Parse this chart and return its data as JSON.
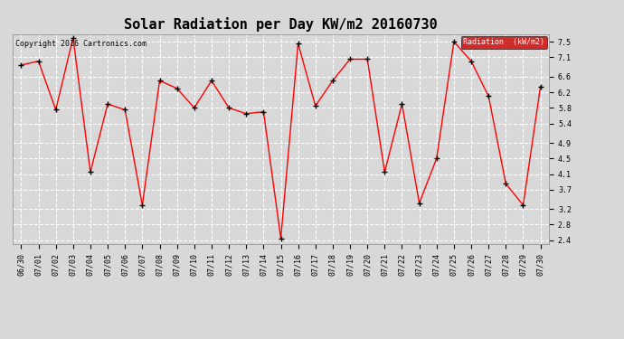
{
  "title": "Solar Radiation per Day KW/m2 20160730",
  "copyright_text": "Copyright 2016 Cartronics.com",
  "legend_label": "Radiation  (kW/m2)",
  "dates": [
    "06/30",
    "07/01",
    "07/02",
    "07/03",
    "07/04",
    "07/05",
    "07/06",
    "07/07",
    "07/08",
    "07/09",
    "07/10",
    "07/11",
    "07/12",
    "07/13",
    "07/14",
    "07/15",
    "07/16",
    "07/17",
    "07/18",
    "07/19",
    "07/20",
    "07/21",
    "07/22",
    "07/23",
    "07/24",
    "07/25",
    "07/26",
    "07/27",
    "07/28",
    "07/29",
    "07/30"
  ],
  "values": [
    6.9,
    7.0,
    5.75,
    7.6,
    4.15,
    5.9,
    5.75,
    3.3,
    6.5,
    6.3,
    5.8,
    6.5,
    5.8,
    5.65,
    5.7,
    2.45,
    7.45,
    5.85,
    6.5,
    7.05,
    7.05,
    4.15,
    5.9,
    3.35,
    4.5,
    7.5,
    7.0,
    6.1,
    3.85,
    3.3,
    6.35
  ],
  "line_color": "red",
  "marker_color": "black",
  "marker_size": 4,
  "line_width": 1.0,
  "ylim": [
    2.3,
    7.7
  ],
  "yticks": [
    2.4,
    2.8,
    3.2,
    3.7,
    4.1,
    4.5,
    4.9,
    5.4,
    5.8,
    6.2,
    6.6,
    7.1,
    7.5
  ],
  "bg_color": "#d8d8d8",
  "plot_bg_color": "#d8d8d8",
  "grid_color": "white",
  "legend_bg": "#cc0000",
  "legend_text_color": "white",
  "title_fontsize": 11,
  "axis_fontsize": 6,
  "copyright_fontsize": 6
}
